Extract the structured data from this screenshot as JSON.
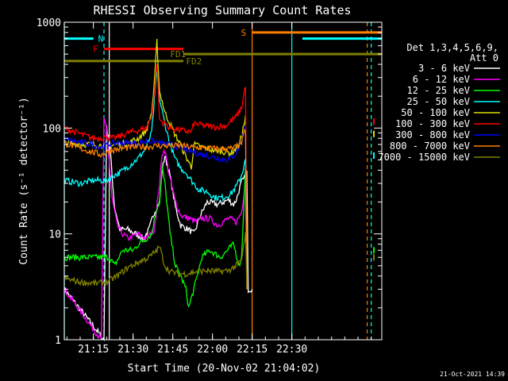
{
  "chart_data": {
    "type": "line",
    "title": "RHESSI Observing Summary Count Rates",
    "xlabel": "Start Time (20-Nov-02 21:04:02)",
    "ylabel": "Count Rate (s⁻¹ detector⁻¹)",
    "ylog": true,
    "xlim_min": [
      0,
      120
    ],
    "ylim": [
      1,
      1000
    ],
    "x_ticks": [
      {
        "v": 11,
        "label": "21:15"
      },
      {
        "v": 26,
        "label": "21:30"
      },
      {
        "v": 41,
        "label": "21:45"
      },
      {
        "v": 56,
        "label": "22:00"
      },
      {
        "v": 71,
        "label": "22:15"
      },
      {
        "v": 86,
        "label": "22:30"
      }
    ],
    "y_ticks": [
      {
        "v": 1,
        "label": "1"
      },
      {
        "v": 10,
        "label": "10"
      },
      {
        "v": 100,
        "label": "100"
      },
      {
        "v": 1000,
        "label": "1000"
      }
    ],
    "legend": {
      "position": "right",
      "header": [
        "Det 1,3,4,5,6,9,",
        "Att 0"
      ]
    },
    "series": [
      {
        "name": "3 - 6 keV",
        "color": "#ffffff",
        "points": [
          [
            0,
            3
          ],
          [
            15,
            1
          ],
          [
            16,
            100
          ],
          [
            17,
            80
          ],
          [
            19,
            18
          ],
          [
            21,
            11
          ],
          [
            24,
            11
          ],
          [
            27,
            10
          ],
          [
            30,
            9
          ],
          [
            32,
            11
          ],
          [
            34,
            16
          ],
          [
            36,
            20
          ],
          [
            37,
            40
          ],
          [
            38,
            55
          ],
          [
            40,
            35
          ],
          [
            42,
            18
          ],
          [
            44,
            12
          ],
          [
            47,
            11
          ],
          [
            49,
            10
          ],
          [
            51,
            14
          ],
          [
            52,
            16
          ],
          [
            54,
            20
          ],
          [
            58,
            19
          ],
          [
            62,
            21
          ],
          [
            64,
            19
          ],
          [
            65,
            21
          ],
          [
            67,
            31
          ],
          [
            68,
            33
          ],
          [
            68.5,
            40
          ],
          [
            69,
            38
          ],
          [
            69.5,
            3
          ],
          [
            70,
            3
          ],
          [
            71,
            3
          ]
        ]
      },
      {
        "name": "6 - 12 keV",
        "color": "#ff00ff",
        "points": [
          [
            0,
            3
          ],
          [
            14,
            1
          ],
          [
            15,
            118
          ],
          [
            16,
            100
          ],
          [
            18,
            22
          ],
          [
            20,
            12
          ],
          [
            22,
            10
          ],
          [
            24,
            9
          ],
          [
            28,
            10
          ],
          [
            31,
            9
          ],
          [
            34,
            11
          ],
          [
            36,
            30
          ],
          [
            37,
            58
          ],
          [
            38,
            62
          ],
          [
            40,
            33
          ],
          [
            42,
            20
          ],
          [
            44,
            15
          ],
          [
            47,
            14
          ],
          [
            50,
            13
          ],
          [
            52,
            14
          ],
          [
            55,
            14
          ],
          [
            58,
            12
          ],
          [
            62,
            14
          ],
          [
            65,
            13
          ],
          [
            67,
            16
          ],
          [
            68.5,
            32
          ],
          [
            69,
            3
          ]
        ]
      },
      {
        "name": "12 - 25 keV",
        "color": "#00ff00",
        "points": [
          [
            0,
            6
          ],
          [
            16,
            6
          ],
          [
            17,
            6
          ],
          [
            19,
            5
          ],
          [
            22,
            7
          ],
          [
            26,
            7
          ],
          [
            28,
            8
          ],
          [
            31,
            9
          ],
          [
            33,
            10
          ],
          [
            35,
            18
          ],
          [
            36,
            20
          ],
          [
            37,
            42
          ],
          [
            38,
            30
          ],
          [
            40,
            10
          ],
          [
            42,
            5
          ],
          [
            44,
            4
          ],
          [
            46,
            3
          ],
          [
            47,
            2
          ],
          [
            49,
            3
          ],
          [
            52,
            6
          ],
          [
            55,
            7
          ],
          [
            59,
            6
          ],
          [
            64,
            8
          ],
          [
            66,
            5
          ],
          [
            67,
            6
          ],
          [
            68.5,
            42
          ],
          [
            69,
            3
          ]
        ]
      },
      {
        "name": "25 - 50 keV",
        "color": "#00ffff",
        "points": [
          [
            0,
            32
          ],
          [
            6,
            30
          ],
          [
            11,
            32
          ],
          [
            16,
            32
          ],
          [
            18,
            35
          ],
          [
            21,
            38
          ],
          [
            24,
            43
          ],
          [
            28,
            52
          ],
          [
            31,
            65
          ],
          [
            33,
            90
          ],
          [
            34,
            170
          ],
          [
            35,
            350
          ],
          [
            36,
            190
          ],
          [
            38,
            110
          ],
          [
            40,
            70
          ],
          [
            42,
            50
          ],
          [
            44,
            42
          ],
          [
            46,
            38
          ],
          [
            48,
            32
          ],
          [
            51,
            26
          ],
          [
            54,
            25
          ],
          [
            57,
            22
          ],
          [
            60,
            22
          ],
          [
            63,
            24
          ],
          [
            65,
            28
          ],
          [
            67,
            36
          ],
          [
            68.5,
            50
          ],
          [
            69,
            3
          ]
        ]
      },
      {
        "name": "50 - 100 keV",
        "color": "#dddd00",
        "points": [
          [
            0,
            72
          ],
          [
            10,
            70
          ],
          [
            16,
            68
          ],
          [
            20,
            70
          ],
          [
            24,
            72
          ],
          [
            28,
            80
          ],
          [
            31,
            95
          ],
          [
            33,
            140
          ],
          [
            34,
            250
          ],
          [
            35,
            660
          ],
          [
            36,
            220
          ],
          [
            37,
            180
          ],
          [
            38,
            140
          ],
          [
            40,
            110
          ],
          [
            42,
            85
          ],
          [
            44,
            70
          ],
          [
            45,
            60
          ],
          [
            47,
            48
          ],
          [
            48,
            42
          ],
          [
            49,
            70
          ],
          [
            52,
            66
          ],
          [
            56,
            62
          ],
          [
            60,
            60
          ],
          [
            63,
            58
          ],
          [
            66,
            67
          ],
          [
            68.5,
            125
          ],
          [
            69,
            3
          ]
        ]
      },
      {
        "name": "100 - 300 keV",
        "color": "#ff0000",
        "points": [
          [
            0,
            100
          ],
          [
            6,
            88
          ],
          [
            11,
            80
          ],
          [
            16,
            82
          ],
          [
            19,
            80
          ],
          [
            24,
            90
          ],
          [
            28,
            95
          ],
          [
            31,
            100
          ],
          [
            33,
            130
          ],
          [
            34,
            200
          ],
          [
            35,
            420
          ],
          [
            36,
            120
          ],
          [
            40,
            100
          ],
          [
            44,
            95
          ],
          [
            48,
            92
          ],
          [
            49,
            110
          ],
          [
            53,
            105
          ],
          [
            57,
            102
          ],
          [
            61,
            105
          ],
          [
            65,
            128
          ],
          [
            67,
            155
          ],
          [
            68.5,
            255
          ],
          [
            69,
            3
          ]
        ]
      },
      {
        "name": "300 - 800 keV",
        "color": "#0000ff",
        "points": [
          [
            0,
            78
          ],
          [
            8,
            72
          ],
          [
            14,
            66
          ],
          [
            18,
            72
          ],
          [
            24,
            72
          ],
          [
            28,
            72
          ],
          [
            31,
            75
          ],
          [
            34,
            75
          ],
          [
            36,
            72
          ],
          [
            39,
            70
          ],
          [
            42,
            68
          ],
          [
            46,
            62
          ],
          [
            50,
            58
          ],
          [
            54,
            55
          ],
          [
            58,
            52
          ],
          [
            62,
            50
          ],
          [
            65,
            58
          ],
          [
            67,
            78
          ],
          [
            68.5,
            110
          ],
          [
            69,
            3
          ]
        ]
      },
      {
        "name": "800 - 7000 keV",
        "color": "#ff8000",
        "points": [
          [
            0,
            72
          ],
          [
            8,
            62
          ],
          [
            14,
            56
          ],
          [
            18,
            62
          ],
          [
            24,
            65
          ],
          [
            28,
            67
          ],
          [
            32,
            67
          ],
          [
            36,
            68
          ],
          [
            40,
            68
          ],
          [
            44,
            68
          ],
          [
            48,
            66
          ],
          [
            52,
            65
          ],
          [
            56,
            64
          ],
          [
            60,
            64
          ],
          [
            64,
            64
          ],
          [
            67,
            72
          ],
          [
            68.5,
            98
          ],
          [
            69,
            3
          ]
        ]
      },
      {
        "name": "7000 - 15000 keV",
        "color": "#808000",
        "points": [
          [
            0,
            3.8
          ],
          [
            6,
            3.5
          ],
          [
            12,
            3.4
          ],
          [
            16,
            3.5
          ],
          [
            20,
            4.0
          ],
          [
            24,
            4.8
          ],
          [
            28,
            5.4
          ],
          [
            32,
            6.0
          ],
          [
            35,
            7.0
          ],
          [
            36,
            7.6
          ],
          [
            38,
            5.0
          ],
          [
            40,
            4.4
          ],
          [
            43,
            4.2
          ],
          [
            46,
            4.2
          ],
          [
            50,
            4.4
          ],
          [
            54,
            4.5
          ],
          [
            58,
            4.4
          ],
          [
            62,
            4.5
          ],
          [
            65,
            5.0
          ],
          [
            67,
            5.6
          ],
          [
            68.5,
            10
          ],
          [
            69,
            3
          ]
        ]
      }
    ],
    "flags": [
      {
        "label": "N",
        "color": "#00ffff",
        "segments": [
          [
            0,
            11
          ],
          [
            90,
            120
          ]
        ],
        "level": 700
      },
      {
        "label": "F",
        "color": "#ff0000",
        "segments": [
          [
            15,
            45
          ]
        ],
        "level": 560
      },
      {
        "label": "FD1",
        "color": "#808000",
        "segments": [
          [
            45,
            120
          ]
        ],
        "level": 500
      },
      {
        "label": "FD2",
        "color": "#808000",
        "segments": [
          [
            0,
            45
          ]
        ],
        "level": 430
      },
      {
        "label": "S",
        "color": "#ff8000",
        "segments": [
          [
            71,
            120
          ]
        ],
        "level": 800
      }
    ],
    "vlines": [
      {
        "x": 0,
        "color": "#00ffff",
        "dashed": false
      },
      {
        "x": 15,
        "color": "#00ffff",
        "dashed": true
      },
      {
        "x": 71,
        "color": "#ff8000",
        "dashed": false
      },
      {
        "x": 86,
        "color": "#00ffff",
        "dashed": false
      },
      {
        "x": 114.5,
        "color": "#ff8000",
        "dashed": true
      },
      {
        "x": 116,
        "color": "#00ffff",
        "dashed": true
      },
      {
        "x": 17,
        "color": "#ffffff",
        "dashed": false
      }
    ],
    "right_edge_points": [
      {
        "color": "#ff0000",
        "y": 115
      },
      {
        "color": "#dddd00",
        "y": 88
      },
      {
        "color": "#00ffff",
        "y": 55
      },
      {
        "color": "#00ff00",
        "y": 7
      },
      {
        "color": "#808000",
        "y": 6
      }
    ],
    "timestamp": "21-Oct-2021 14:39"
  }
}
